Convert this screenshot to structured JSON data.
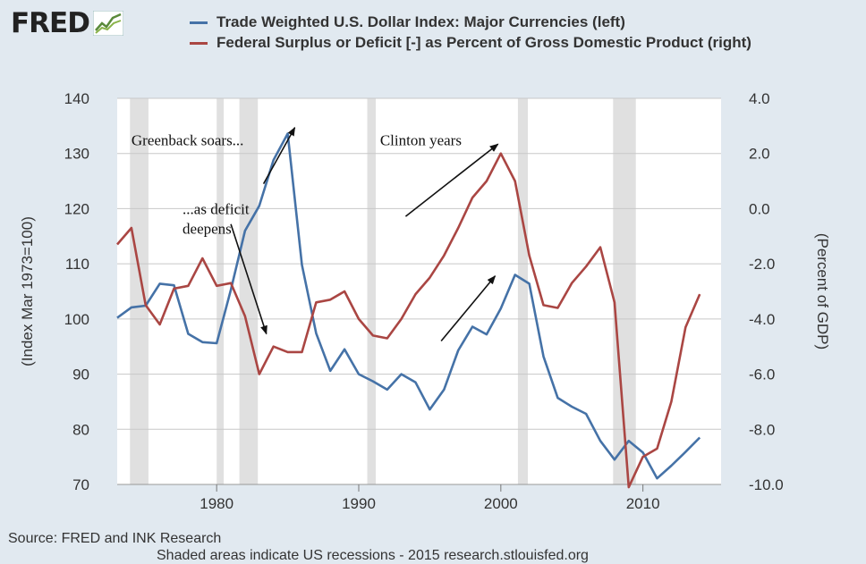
{
  "logo": {
    "text": "FRED"
  },
  "source": "Source: FRED and INK Research",
  "footnote": "Shaded areas indicate US recessions - 2015 research.stlouisfed.org",
  "chart_data": {
    "type": "line",
    "legend": [
      {
        "label": "Trade Weighted U.S. Dollar Index: Major Currencies (left)",
        "color": "#4572a7"
      },
      {
        "label": "Federal Surplus or Deficit [-] as Percent of Gross Domestic Product (right)",
        "color": "#aa4643"
      }
    ],
    "y_left_label": "(Index Mar 1973=100)",
    "y_right_label": "(Percent of GDP)",
    "y_left_lim": [
      70,
      140
    ],
    "y_right_lim": [
      -10,
      4
    ],
    "x_lim": [
      1973,
      2015.5
    ],
    "x_ticks": [
      1980,
      1990,
      2000,
      2010
    ],
    "y_left_ticks": [
      70,
      80,
      90,
      100,
      110,
      120,
      130,
      140
    ],
    "y_right_ticks": [
      "4.0",
      "2.0",
      "0.0",
      "-2.0",
      "-4.0",
      "-6.0",
      "-8.0",
      "-10.0"
    ],
    "grid": true,
    "recessions": [
      [
        1973.9,
        1975.2
      ],
      [
        1980.0,
        1980.5
      ],
      [
        1981.6,
        1982.9
      ],
      [
        1990.6,
        1991.2
      ],
      [
        2001.2,
        2001.9
      ],
      [
        2007.9,
        2009.5
      ]
    ],
    "series": [
      {
        "name": "Trade Weighted U.S. Dollar Index: Major Currencies (left)",
        "axis": "left",
        "color": "#4572a7",
        "x": [
          1973,
          1974,
          1975,
          1976,
          1977,
          1978,
          1979,
          1980,
          1981,
          1982,
          1983,
          1984,
          1985,
          1986,
          1987,
          1988,
          1989,
          1990,
          1991,
          1992,
          1993,
          1994,
          1995,
          1996,
          1997,
          1998,
          1999,
          2000,
          2001,
          2002,
          2003,
          2004,
          2005,
          2006,
          2007,
          2008,
          2009,
          2010,
          2011,
          2012,
          2013,
          2014
        ],
        "y": [
          100.2,
          102.1,
          102.4,
          106.4,
          106.1,
          97.3,
          95.8,
          95.6,
          105.3,
          116.0,
          120.5,
          128.8,
          133.6,
          109.8,
          97.4,
          90.6,
          94.5,
          90.0,
          88.7,
          87.2,
          90.0,
          88.5,
          83.6,
          87.2,
          94.3,
          98.6,
          97.2,
          101.9,
          108.0,
          106.4,
          93.2,
          85.7,
          84.1,
          82.8,
          77.9,
          74.5,
          77.9,
          75.8,
          71.1,
          73.4,
          75.9,
          78.5
        ]
      },
      {
        "name": "Federal Surplus or Deficit [-] as Percent of Gross Domestic Product (right)",
        "axis": "right",
        "color": "#aa4643",
        "x": [
          1973,
          1974,
          1975,
          1976,
          1977,
          1978,
          1979,
          1980,
          1981,
          1982,
          1983,
          1984,
          1985,
          1986,
          1987,
          1988,
          1989,
          1990,
          1991,
          1992,
          1993,
          1994,
          1995,
          1996,
          1997,
          1998,
          1999,
          2000,
          2001,
          2002,
          2003,
          2004,
          2005,
          2006,
          2007,
          2008,
          2009,
          2010,
          2011,
          2012,
          2013,
          2014
        ],
        "y": [
          -1.3,
          -0.7,
          -3.5,
          -4.2,
          -2.9,
          -2.8,
          -1.8,
          -2.8,
          -2.7,
          -3.9,
          -6.0,
          -5.0,
          -5.2,
          -5.2,
          -3.4,
          -3.3,
          -3.0,
          -4.0,
          -4.6,
          -4.7,
          -4.0,
          -3.1,
          -2.5,
          -1.7,
          -0.7,
          0.4,
          1.0,
          2.0,
          1.0,
          -1.7,
          -3.5,
          -3.6,
          -2.7,
          -2.1,
          -1.4,
          -3.4,
          -10.1,
          -9.0,
          -8.7,
          -7.0,
          -4.3,
          -3.1
        ]
      }
    ],
    "annotations": [
      {
        "text": "Greenback soars...",
        "x": 1974.0,
        "y": 131.5,
        "axis": "left",
        "lines": [
          "Greenback soars..."
        ]
      },
      {
        "text": "...as deficit deepens",
        "x": 1977.6,
        "y": 119.0,
        "axis": "left",
        "lines": [
          "...as deficit",
          "deepens"
        ]
      },
      {
        "text": "Clinton years",
        "x": 1991.5,
        "y": 131.5,
        "axis": "left",
        "lines": [
          "Clinton years"
        ]
      }
    ],
    "arrows": [
      {
        "x1": 1983.3,
        "y1": 124.5,
        "x2": 1985.5,
        "y2": 134.7,
        "axis": "left"
      },
      {
        "x1": 1981.0,
        "y1": 117.2,
        "x2": 1983.5,
        "y2": 97.3,
        "axis": "left"
      },
      {
        "x1": 1993.3,
        "y1": 118.6,
        "x2": 1999.8,
        "y2": 131.7,
        "axis": "left"
      },
      {
        "x1": 1995.8,
        "y1": 96.0,
        "x2": 1999.6,
        "y2": 107.8,
        "axis": "left"
      }
    ]
  }
}
